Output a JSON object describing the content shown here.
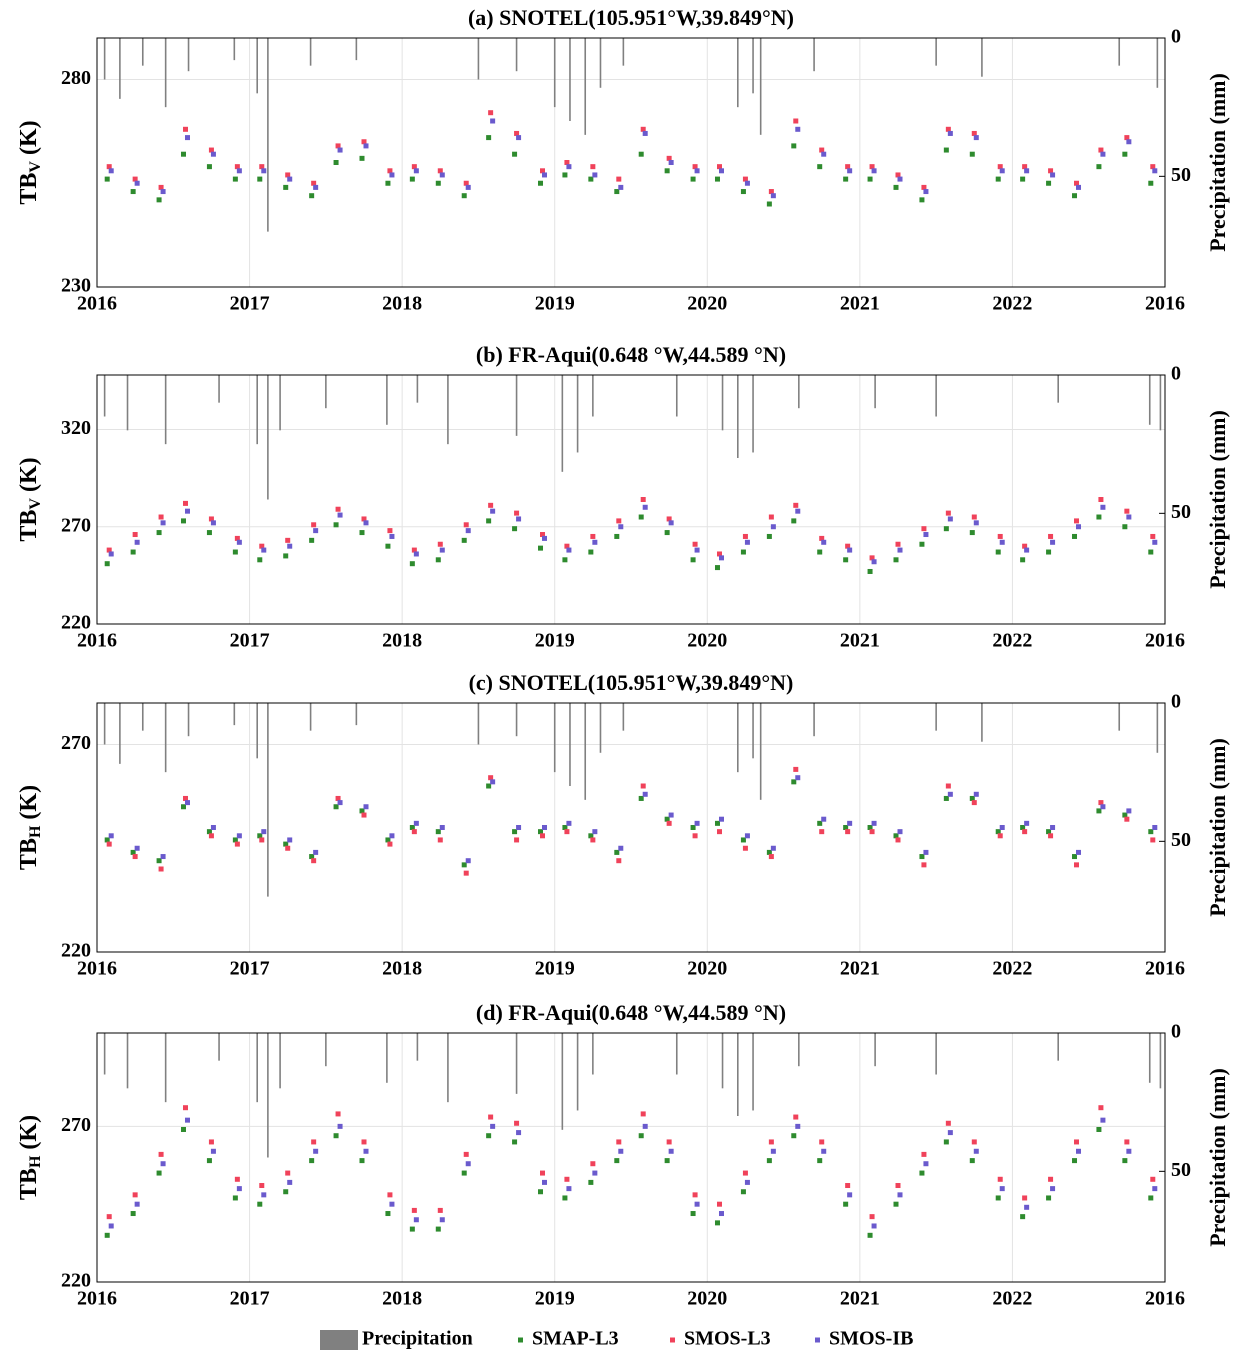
{
  "chart_data": [
    {
      "type": "scatter",
      "title": "(a) SNOTEL(105.951°W,39.849°N)",
      "ylabel_main": "TB",
      "ylabel_sub": "V",
      "ylabel_unit": " (K)",
      "y2label": "Precipitation (mm)",
      "xlim": [
        2016,
        2023
      ],
      "xticks": [
        2016,
        2017,
        2018,
        2019,
        2020,
        2021,
        2022,
        {
          "value": 2023,
          "label": "2016"
        }
      ],
      "ylim": [
        230,
        290
      ],
      "yticks": [
        230,
        280
      ],
      "y2lim": [
        90,
        0
      ],
      "y2ticks": [
        0,
        50
      ],
      "grid": true,
      "x": [
        2016.08,
        2016.25,
        2016.42,
        2016.58,
        2016.75,
        2016.92,
        2017.08,
        2017.25,
        2017.42,
        2017.58,
        2017.75,
        2017.92,
        2018.08,
        2018.25,
        2018.42,
        2018.58,
        2018.75,
        2018.92,
        2019.08,
        2019.25,
        2019.42,
        2019.58,
        2019.75,
        2019.92,
        2020.08,
        2020.25,
        2020.42,
        2020.58,
        2020.75,
        2020.92,
        2021.08,
        2021.25,
        2021.42,
        2021.58,
        2021.75,
        2021.92,
        2022.08,
        2022.25,
        2022.42,
        2022.58,
        2022.75,
        2022.92
      ],
      "series": [
        {
          "name": "Precipitation",
          "type": "bar",
          "axis": "y2",
          "color": "#808080",
          "x": [
            2016.05,
            2016.15,
            2016.3,
            2016.45,
            2016.6,
            2016.9,
            2017.05,
            2017.12,
            2017.4,
            2017.7,
            2018.5,
            2018.75,
            2019.0,
            2019.1,
            2019.2,
            2019.3,
            2019.45,
            2020.2,
            2020.3,
            2020.35,
            2020.7,
            2021.5,
            2021.8,
            2022.7,
            2022.95
          ],
          "values": [
            15,
            22,
            10,
            25,
            12,
            8,
            20,
            70,
            10,
            8,
            15,
            12,
            25,
            30,
            35,
            18,
            10,
            25,
            20,
            35,
            12,
            10,
            14,
            10,
            18
          ]
        },
        {
          "name": "SMAP-L3",
          "color": "#2e8b2e",
          "values": [
            256,
            253,
            251,
            262,
            259,
            256,
            256,
            254,
            252,
            260,
            261,
            255,
            256,
            255,
            252,
            266,
            262,
            255,
            257,
            256,
            253,
            262,
            258,
            256,
            256,
            253,
            250,
            264,
            259,
            256,
            256,
            254,
            251,
            263,
            262,
            256,
            256,
            255,
            252,
            259,
            262,
            255
          ]
        },
        {
          "name": "SMOS-L3",
          "color": "#f0425a",
          "values": [
            259,
            256,
            254,
            268,
            263,
            259,
            259,
            257,
            255,
            264,
            265,
            258,
            259,
            258,
            255,
            272,
            267,
            258,
            260,
            259,
            256,
            268,
            261,
            259,
            259,
            256,
            253,
            270,
            263,
            259,
            259,
            257,
            254,
            268,
            267,
            259,
            259,
            258,
            255,
            263,
            266,
            259
          ]
        },
        {
          "name": "SMOS-IB",
          "color": "#6a5acd",
          "values": [
            258,
            255,
            253,
            266,
            262,
            258,
            258,
            256,
            254,
            263,
            264,
            257,
            258,
            257,
            254,
            270,
            266,
            257,
            259,
            257,
            254,
            267,
            260,
            258,
            258,
            255,
            252,
            268,
            262,
            258,
            258,
            256,
            253,
            267,
            266,
            258,
            258,
            257,
            254,
            262,
            265,
            258
          ]
        }
      ]
    },
    {
      "type": "scatter",
      "title": "(b) FR-Aqui(0.648 °W,44.589 °N)",
      "ylabel_main": "TB",
      "ylabel_sub": "V",
      "ylabel_unit": " (K)",
      "y2label": "Precipitation (mm)",
      "xlim": [
        2016,
        2023
      ],
      "xticks": [
        2016,
        2017,
        2018,
        2019,
        2020,
        2021,
        2022,
        {
          "value": 2023,
          "label": "2016"
        }
      ],
      "ylim": [
        220,
        348
      ],
      "yticks": [
        220,
        270,
        320
      ],
      "y2lim": [
        90,
        0
      ],
      "y2ticks": [
        0,
        50
      ],
      "grid": true,
      "x": [
        2016.08,
        2016.25,
        2016.42,
        2016.58,
        2016.75,
        2016.92,
        2017.08,
        2017.25,
        2017.42,
        2017.58,
        2017.75,
        2017.92,
        2018.08,
        2018.25,
        2018.42,
        2018.58,
        2018.75,
        2018.92,
        2019.08,
        2019.25,
        2019.42,
        2019.58,
        2019.75,
        2019.92,
        2020.08,
        2020.25,
        2020.42,
        2020.58,
        2020.75,
        2020.92,
        2021.08,
        2021.25,
        2021.42,
        2021.58,
        2021.75,
        2021.92,
        2022.08,
        2022.25,
        2022.42,
        2022.58,
        2022.75,
        2022.92
      ],
      "series": [
        {
          "type": "bar",
          "axis": "y2",
          "color": "#808080",
          "x": [
            2016.05,
            2016.2,
            2016.45,
            2016.8,
            2017.05,
            2017.12,
            2017.2,
            2017.5,
            2017.9,
            2018.1,
            2018.3,
            2018.75,
            2019.05,
            2019.15,
            2019.25,
            2019.8,
            2020.1,
            2020.2,
            2020.3,
            2020.6,
            2021.1,
            2021.5,
            2022.3,
            2022.9,
            2022.97
          ],
          "values": [
            15,
            20,
            25,
            10,
            25,
            45,
            20,
            12,
            18,
            10,
            25,
            22,
            35,
            28,
            15,
            15,
            20,
            30,
            28,
            12,
            12,
            15,
            10,
            18,
            20
          ]
        },
        {
          "color": "#2e8b2e",
          "values": [
            251,
            257,
            267,
            273,
            267,
            257,
            253,
            255,
            263,
            271,
            267,
            260,
            251,
            253,
            263,
            273,
            269,
            259,
            253,
            257,
            265,
            275,
            267,
            253,
            249,
            257,
            265,
            273,
            257,
            253,
            247,
            253,
            261,
            269,
            267,
            257,
            253,
            257,
            265,
            275,
            270,
            257
          ]
        },
        {
          "color": "#f0425a",
          "values": [
            258,
            266,
            275,
            282,
            274,
            264,
            260,
            263,
            271,
            279,
            274,
            268,
            258,
            261,
            271,
            281,
            277,
            266,
            260,
            265,
            273,
            284,
            274,
            261,
            256,
            265,
            275,
            281,
            264,
            260,
            254,
            261,
            269,
            277,
            275,
            265,
            260,
            265,
            273,
            284,
            278,
            265
          ]
        },
        {
          "color": "#6a5acd",
          "values": [
            256,
            262,
            272,
            278,
            272,
            262,
            258,
            260,
            268,
            276,
            272,
            265,
            256,
            258,
            268,
            278,
            274,
            264,
            258,
            262,
            270,
            280,
            272,
            258,
            254,
            262,
            270,
            278,
            262,
            258,
            252,
            258,
            266,
            274,
            272,
            262,
            258,
            262,
            270,
            280,
            275,
            262
          ]
        }
      ]
    },
    {
      "type": "scatter",
      "title": "(c) SNOTEL(105.951°W,39.849°N)",
      "ylabel_main": "TB",
      "ylabel_sub": "H",
      "ylabel_unit": " (K)",
      "y2label": "Precipitation (mm)",
      "xlim": [
        2016,
        2023
      ],
      "xticks": [
        2016,
        2017,
        2018,
        2019,
        2020,
        2021,
        2022,
        {
          "value": 2023,
          "label": "2016"
        }
      ],
      "ylim": [
        220,
        280
      ],
      "yticks": [
        220,
        270
      ],
      "y2lim": [
        90,
        0
      ],
      "y2ticks": [
        0,
        50
      ],
      "grid": true,
      "x": [
        2016.08,
        2016.25,
        2016.42,
        2016.58,
        2016.75,
        2016.92,
        2017.08,
        2017.25,
        2017.42,
        2017.58,
        2017.75,
        2017.92,
        2018.08,
        2018.25,
        2018.42,
        2018.58,
        2018.75,
        2018.92,
        2019.08,
        2019.25,
        2019.42,
        2019.58,
        2019.75,
        2019.92,
        2020.08,
        2020.25,
        2020.42,
        2020.58,
        2020.75,
        2020.92,
        2021.08,
        2021.25,
        2021.42,
        2021.58,
        2021.75,
        2021.92,
        2022.08,
        2022.25,
        2022.42,
        2022.58,
        2022.75,
        2022.92
      ],
      "series": [
        {
          "type": "bar",
          "axis": "y2",
          "color": "#808080",
          "x": [
            2016.05,
            2016.15,
            2016.3,
            2016.45,
            2016.6,
            2016.9,
            2017.05,
            2017.12,
            2017.4,
            2017.7,
            2018.5,
            2018.75,
            2019.0,
            2019.1,
            2019.2,
            2019.3,
            2019.45,
            2020.2,
            2020.3,
            2020.35,
            2020.7,
            2021.5,
            2021.8,
            2022.7,
            2022.95
          ],
          "values": [
            15,
            22,
            10,
            25,
            12,
            8,
            20,
            70,
            10,
            8,
            15,
            12,
            25,
            30,
            35,
            18,
            10,
            25,
            20,
            35,
            12,
            10,
            14,
            10,
            18
          ]
        },
        {
          "color": "#2e8b2e",
          "values": [
            247,
            244,
            242,
            255,
            249,
            247,
            248,
            246,
            243,
            255,
            254,
            247,
            250,
            249,
            241,
            260,
            249,
            249,
            250,
            248,
            244,
            257,
            252,
            250,
            251,
            247,
            244,
            261,
            251,
            250,
            250,
            248,
            243,
            257,
            257,
            249,
            250,
            249,
            243,
            254,
            253,
            249
          ]
        },
        {
          "color": "#f0425a",
          "values": [
            246,
            243,
            240,
            257,
            248,
            246,
            247,
            245,
            242,
            257,
            253,
            246,
            249,
            247,
            239,
            262,
            247,
            248,
            249,
            247,
            242,
            260,
            251,
            248,
            249,
            245,
            243,
            264,
            249,
            249,
            249,
            247,
            241,
            260,
            256,
            248,
            249,
            248,
            241,
            256,
            252,
            247
          ]
        },
        {
          "color": "#6a5acd",
          "values": [
            248,
            245,
            243,
            256,
            250,
            248,
            249,
            247,
            244,
            256,
            255,
            248,
            251,
            250,
            242,
            261,
            250,
            250,
            251,
            249,
            245,
            258,
            253,
            251,
            252,
            248,
            245,
            262,
            252,
            251,
            251,
            249,
            244,
            258,
            258,
            250,
            251,
            250,
            244,
            255,
            254,
            250
          ]
        }
      ]
    },
    {
      "type": "scatter",
      "title": "(d) FR-Aqui(0.648 °W,44.589 °N)",
      "ylabel_main": "TB",
      "ylabel_sub": "H",
      "ylabel_unit": " (K)",
      "y2label": "Precipitation (mm)",
      "xlim": [
        2016,
        2023
      ],
      "xticks": [
        2016,
        2017,
        2018,
        2019,
        2020,
        2021,
        2022,
        {
          "value": 2023,
          "label": "2016"
        }
      ],
      "ylim": [
        220,
        300
      ],
      "yticks": [
        220,
        270
      ],
      "y2lim": [
        90,
        0
      ],
      "y2ticks": [
        0,
        50
      ],
      "grid": true,
      "x": [
        2016.08,
        2016.25,
        2016.42,
        2016.58,
        2016.75,
        2016.92,
        2017.08,
        2017.25,
        2017.42,
        2017.58,
        2017.75,
        2017.92,
        2018.08,
        2018.25,
        2018.42,
        2018.58,
        2018.75,
        2018.92,
        2019.08,
        2019.25,
        2019.42,
        2019.58,
        2019.75,
        2019.92,
        2020.08,
        2020.25,
        2020.42,
        2020.58,
        2020.75,
        2020.92,
        2021.08,
        2021.25,
        2021.42,
        2021.58,
        2021.75,
        2021.92,
        2022.08,
        2022.25,
        2022.42,
        2022.58,
        2022.75,
        2022.92
      ],
      "series": [
        {
          "type": "bar",
          "axis": "y2",
          "color": "#808080",
          "x": [
            2016.05,
            2016.2,
            2016.45,
            2016.8,
            2017.05,
            2017.12,
            2017.2,
            2017.5,
            2017.9,
            2018.1,
            2018.3,
            2018.75,
            2019.05,
            2019.15,
            2019.25,
            2019.8,
            2020.1,
            2020.2,
            2020.3,
            2020.6,
            2021.1,
            2021.5,
            2022.3,
            2022.9,
            2022.97
          ],
          "values": [
            15,
            20,
            25,
            10,
            25,
            45,
            20,
            12,
            18,
            10,
            25,
            22,
            35,
            28,
            15,
            15,
            20,
            30,
            28,
            12,
            12,
            15,
            10,
            18,
            20
          ]
        },
        {
          "color": "#2e8b2e",
          "values": [
            235,
            242,
            255,
            269,
            259,
            247,
            245,
            249,
            259,
            267,
            259,
            242,
            237,
            237,
            255,
            267,
            265,
            249,
            247,
            252,
            259,
            267,
            259,
            242,
            239,
            249,
            259,
            267,
            259,
            245,
            235,
            245,
            255,
            265,
            259,
            247,
            241,
            247,
            259,
            269,
            259,
            247
          ]
        },
        {
          "color": "#f0425a",
          "values": [
            241,
            248,
            261,
            276,
            265,
            253,
            251,
            255,
            265,
            274,
            265,
            248,
            243,
            243,
            261,
            273,
            271,
            255,
            253,
            258,
            265,
            274,
            265,
            248,
            245,
            255,
            265,
            273,
            265,
            251,
            241,
            251,
            261,
            271,
            265,
            253,
            247,
            253,
            265,
            276,
            265,
            253
          ]
        },
        {
          "color": "#6a5acd",
          "values": [
            238,
            245,
            258,
            272,
            262,
            250,
            248,
            252,
            262,
            270,
            262,
            245,
            240,
            240,
            258,
            270,
            268,
            252,
            250,
            255,
            262,
            270,
            262,
            245,
            242,
            252,
            262,
            270,
            262,
            248,
            238,
            248,
            258,
            268,
            262,
            250,
            244,
            250,
            262,
            272,
            262,
            250
          ]
        }
      ]
    }
  ]
}
